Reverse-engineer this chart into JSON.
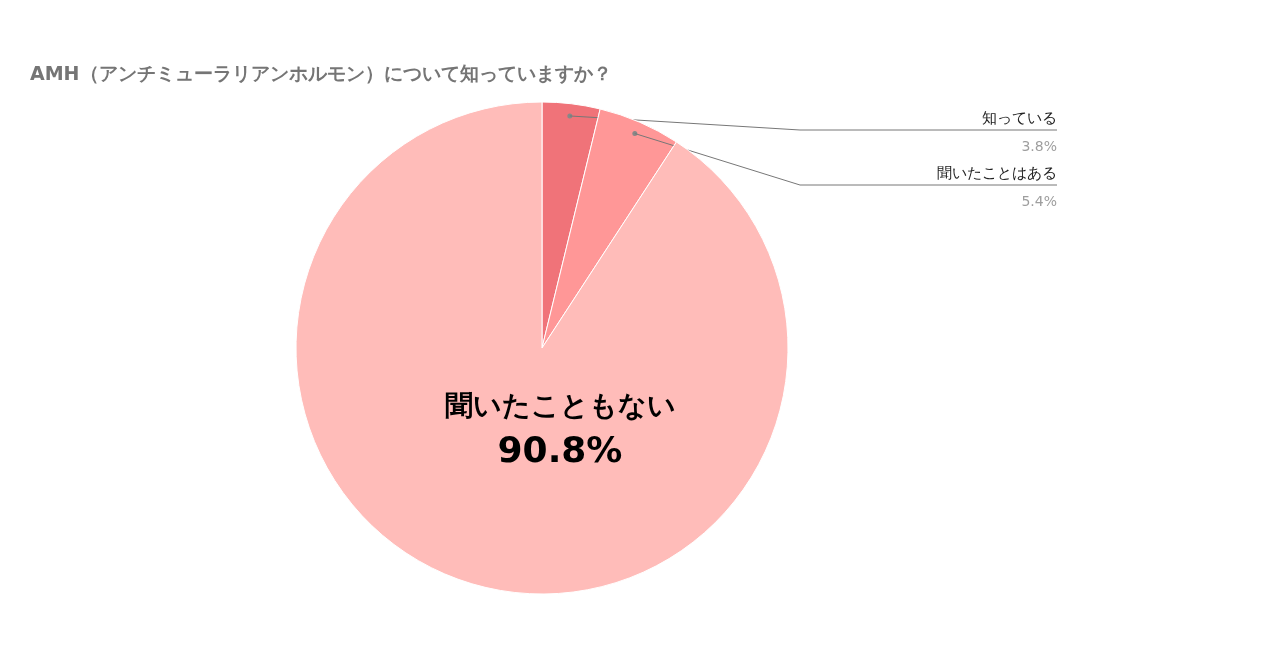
{
  "chart_data": {
    "type": "pie",
    "title": "AMH（アンチミューラリアンホルモン）について知っていますか？",
    "categories": [
      "知っている",
      "聞いたことはある",
      "聞いたこともない"
    ],
    "values": [
      3.8,
      5.4,
      90.8
    ],
    "colors": [
      "#f07379",
      "#ff9797",
      "#ffbcb9"
    ],
    "value_labels": [
      "3.8%",
      "5.4%",
      "90.8%"
    ]
  }
}
